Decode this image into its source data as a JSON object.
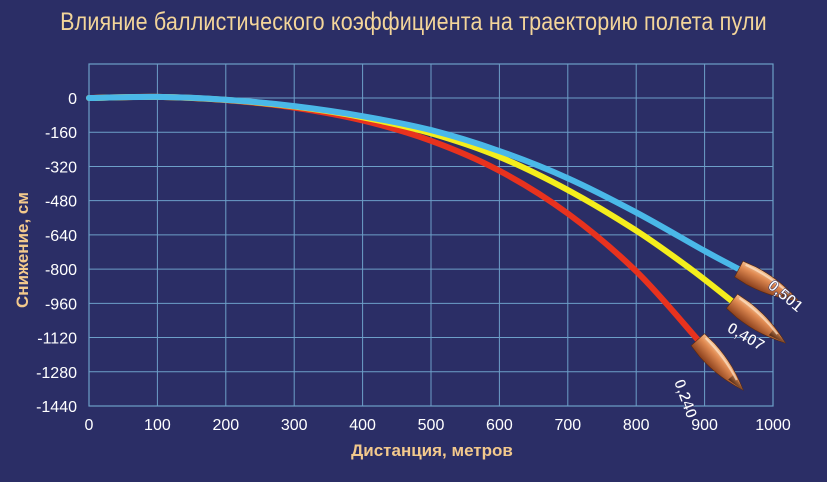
{
  "chart_data": {
    "type": "line",
    "title": "Влияние баллистического коэффициента на траекторию полета пули",
    "xlabel": "Дистанция, метров",
    "ylabel": "Снижение, см",
    "xlim": [
      0,
      1000
    ],
    "ylim": [
      -1440,
      0
    ],
    "x_ticks": [
      "0",
      "100",
      "200",
      "300",
      "400",
      "500",
      "600",
      "700",
      "800",
      "900",
      "1000"
    ],
    "y_ticks": [
      "0",
      "-160",
      "-320",
      "-480",
      "-640",
      "-800",
      "-960",
      "-1120",
      "-1280",
      "-1440"
    ],
    "grid": true,
    "series": [
      {
        "name": "0,240",
        "color": "#e8321e",
        "points": [
          [
            0,
            0
          ],
          [
            100,
            5
          ],
          [
            200,
            -10
          ],
          [
            300,
            -45
          ],
          [
            400,
            -105
          ],
          [
            500,
            -200
          ],
          [
            600,
            -340
          ],
          [
            700,
            -540
          ],
          [
            800,
            -810
          ],
          [
            890,
            -1130
          ]
        ]
      },
      {
        "name": "0,407",
        "color": "#f4ee1c",
        "points": [
          [
            0,
            0
          ],
          [
            100,
            5
          ],
          [
            200,
            -9
          ],
          [
            300,
            -40
          ],
          [
            400,
            -90
          ],
          [
            500,
            -165
          ],
          [
            600,
            -275
          ],
          [
            700,
            -430
          ],
          [
            800,
            -620
          ],
          [
            880,
            -800
          ],
          [
            940,
            -950
          ]
        ]
      },
      {
        "name": "0,501",
        "color": "#4ab8e8",
        "points": [
          [
            0,
            0
          ],
          [
            100,
            5
          ],
          [
            200,
            -8
          ],
          [
            300,
            -38
          ],
          [
            400,
            -85
          ],
          [
            500,
            -150
          ],
          [
            600,
            -248
          ],
          [
            700,
            -375
          ],
          [
            800,
            -535
          ],
          [
            900,
            -715
          ],
          [
            950,
            -800
          ]
        ]
      }
    ]
  }
}
